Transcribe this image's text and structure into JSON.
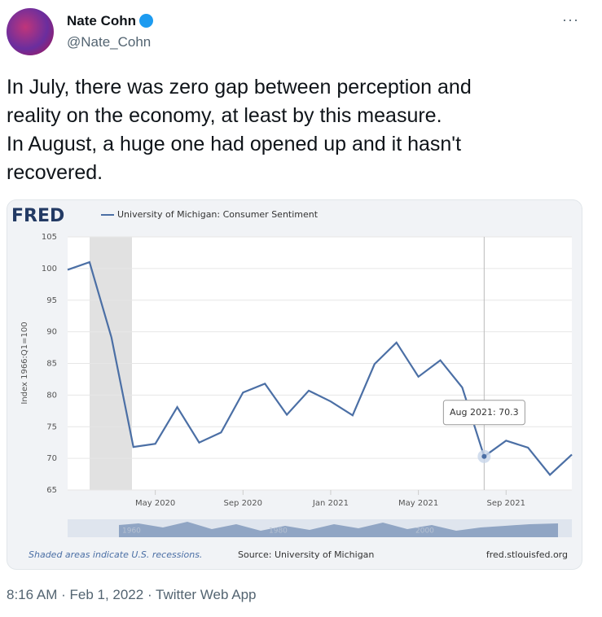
{
  "author": {
    "name": "Nate Cohn",
    "handle": "@Nate_Cohn"
  },
  "text": [
    "In July, there was zero gap between perception and",
    "reality on the economy, at least by this measure.",
    "In August, a huge one had opened up and it hasn't",
    "recovered."
  ],
  "footer": "8:16 AM · Feb 1, 2022 · Twitter Web App",
  "chart_data": {
    "type": "line",
    "logo": "FRED",
    "series_name": "University of Michigan: Consumer Sentiment",
    "ylabel": "Index 1966:Q1=100",
    "categories": [
      null,
      null,
      null,
      null,
      "May 2020",
      null,
      null,
      null,
      "Sep 2020",
      null,
      null,
      null,
      "Jan 2021",
      null,
      null,
      null,
      "May 2021",
      null,
      null,
      null,
      "Sep 2021",
      null,
      null,
      null
    ],
    "values": [
      99.8,
      101.0,
      89.1,
      71.8,
      72.3,
      78.1,
      72.5,
      74.1,
      80.4,
      81.8,
      76.9,
      80.7,
      79.0,
      76.8,
      84.9,
      88.3,
      82.9,
      85.5,
      81.2,
      70.3,
      72.8,
      71.7,
      67.4,
      70.6
    ],
    "value_labels": [
      null,
      null,
      null,
      null,
      null,
      null,
      null,
      null,
      null,
      null,
      null,
      null,
      null,
      null,
      null,
      null,
      null,
      null,
      null,
      "Aug 2021: 70.3",
      null,
      null,
      null,
      null
    ],
    "color": "#4b6fa5",
    "ylim": [
      65,
      105
    ],
    "yticks": [
      65,
      70,
      75,
      80,
      85,
      90,
      95,
      100,
      105
    ],
    "grid": true,
    "navigator_labels": [
      "1960",
      "1980",
      "2000"
    ],
    "note": "Shaded areas indicate U.S. recessions.",
    "source": "Source: University of Michigan",
    "site": "fred.stlouisfed.org"
  }
}
